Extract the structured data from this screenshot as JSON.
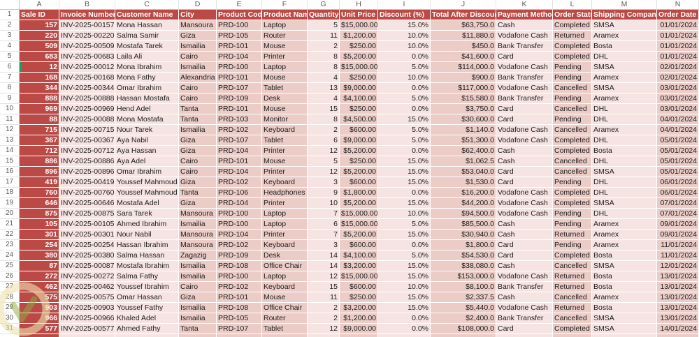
{
  "sheet": {
    "column_letters": [
      "A",
      "B",
      "C",
      "D",
      "E",
      "F",
      "G",
      "H",
      "I",
      "J",
      "K",
      "L",
      "M",
      "N"
    ],
    "header_row_number": "1",
    "headers": [
      "Sale ID",
      "Invoice Number",
      "Customer Name",
      "City",
      "Product Code",
      "Product Name",
      "Quantity",
      "Unit Price",
      "Discount (%)",
      "Total After Discount",
      "Payment Method",
      "Order Status",
      "Shipping Company",
      "Order Date"
    ],
    "row_numbers": [
      "2",
      "3",
      "4",
      "5",
      "6",
      "7",
      "8",
      "9",
      "10",
      "11",
      "12",
      "13",
      "14",
      "15",
      "16",
      "17",
      "18",
      "19",
      "20",
      "21",
      "22",
      "23",
      "24",
      "25",
      "26",
      "27",
      "28",
      "29",
      "30",
      "31"
    ],
    "rows": [
      [
        "157",
        "INV-2025-00157",
        "Mona Hassan",
        "Mansoura",
        "PRD-100",
        "Laptop",
        "5",
        "$15,000.00",
        "15.0%",
        "$63,750.0",
        "Cash",
        "Completed",
        "SMSA",
        "01/01/2024"
      ],
      [
        "220",
        "INV-2025-00220",
        "Salma Samir",
        "Giza",
        "PRD-105",
        "Router",
        "11",
        "$1,200.00",
        "10.0%",
        "$11,880.0",
        "Vodafone Cash",
        "Returned",
        "Aramex",
        "01/01/2024"
      ],
      [
        "509",
        "INV-2025-00509",
        "Mostafa Tarek",
        "Ismailia",
        "PRD-101",
        "Mouse",
        "2",
        "$250.00",
        "10.0%",
        "$450.0",
        "Bank Transfer",
        "Completed",
        "Bosta",
        "01/01/2024"
      ],
      [
        "683",
        "INV-2025-00683",
        "Laila Ali",
        "Cairo",
        "PRD-104",
        "Printer",
        "8",
        "$5,200.00",
        "0.0%",
        "$41,600.0",
        "Card",
        "Completed",
        "DHL",
        "01/01/2024"
      ],
      [
        "12",
        "INV-2025-00012",
        "Mona Ibrahim",
        "Ismailia",
        "PRD-100",
        "Laptop",
        "8",
        "$15,000.00",
        "5.0%",
        "$114,000.0",
        "Vodafone Cash",
        "Pending",
        "SMSA",
        "02/01/2024"
      ],
      [
        "168",
        "INV-2025-00168",
        "Mona Fathy",
        "Alexandria",
        "PRD-101",
        "Mouse",
        "4",
        "$250.00",
        "10.0%",
        "$900.0",
        "Bank Transfer",
        "Pending",
        "Aramex",
        "02/01/2024"
      ],
      [
        "344",
        "INV-2025-00344",
        "Omar Ibrahim",
        "Cairo",
        "PRD-107",
        "Tablet",
        "13",
        "$9,000.00",
        "0.0%",
        "$117,000.0",
        "Vodafone Cash",
        "Cancelled",
        "SMSA",
        "03/01/2024"
      ],
      [
        "888",
        "INV-2025-00888",
        "Hassan Mostafa",
        "Cairo",
        "PRD-109",
        "Desk",
        "4",
        "$4,100.00",
        "5.0%",
        "$15,580.0",
        "Bank Transfer",
        "Pending",
        "Aramex",
        "03/01/2024"
      ],
      [
        "969",
        "INV-2025-00969",
        "Hend Adel",
        "Tanta",
        "PRD-101",
        "Mouse",
        "15",
        "$250.00",
        "0.0%",
        "$3,750.0",
        "Card",
        "Cancelled",
        "DHL",
        "03/01/2024"
      ],
      [
        "88",
        "INV-2025-00088",
        "Mona Mostafa",
        "Tanta",
        "PRD-103",
        "Monitor",
        "8",
        "$4,500.00",
        "15.0%",
        "$30,600.0",
        "Card",
        "Pending",
        "DHL",
        "04/01/2024"
      ],
      [
        "715",
        "INV-2025-00715",
        "Nour Tarek",
        "Ismailia",
        "PRD-102",
        "Keyboard",
        "2",
        "$600.00",
        "5.0%",
        "$1,140.0",
        "Vodafone Cash",
        "Cancelled",
        "Aramex",
        "04/01/2024"
      ],
      [
        "367",
        "INV-2025-00367",
        "Aya Nabil",
        "Giza",
        "PRD-107",
        "Tablet",
        "6",
        "$9,000.00",
        "5.0%",
        "$51,300.0",
        "Vodafone Cash",
        "Completed",
        "DHL",
        "05/01/2024"
      ],
      [
        "712",
        "INV-2025-00712",
        "Aya Hassan",
        "Giza",
        "PRD-104",
        "Printer",
        "12",
        "$5,200.00",
        "0.0%",
        "$62,400.0",
        "Cash",
        "Completed",
        "Bosta",
        "05/01/2024"
      ],
      [
        "886",
        "INV-2025-00886",
        "Aya Adel",
        "Cairo",
        "PRD-101",
        "Mouse",
        "5",
        "$250.00",
        "15.0%",
        "$1,062.5",
        "Cash",
        "Cancelled",
        "DHL",
        "05/01/2024"
      ],
      [
        "896",
        "INV-2025-00896",
        "Omar Ibrahim",
        "Cairo",
        "PRD-104",
        "Printer",
        "12",
        "$5,200.00",
        "15.0%",
        "$53,040.0",
        "Card",
        "Cancelled",
        "SMSA",
        "05/01/2024"
      ],
      [
        "419",
        "INV-2025-00419",
        "Youssef Mahmoud",
        "Giza",
        "PRD-102",
        "Keyboard",
        "3",
        "$600.00",
        "15.0%",
        "$1,530.0",
        "Card",
        "Pending",
        "DHL",
        "06/01/2024"
      ],
      [
        "760",
        "INV-2025-00760",
        "Youssef Mahmoud",
        "Tanta",
        "PRD-106",
        "Headphones",
        "9",
        "$1,800.00",
        "0.0%",
        "$16,200.0",
        "Vodafone Cash",
        "Completed",
        "DHL",
        "06/01/2024"
      ],
      [
        "646",
        "INV-2025-00646",
        "Mostafa Adel",
        "Giza",
        "PRD-104",
        "Printer",
        "10",
        "$5,200.00",
        "15.0%",
        "$44,200.0",
        "Vodafone Cash",
        "Completed",
        "SMSA",
        "07/01/2024"
      ],
      [
        "875",
        "INV-2025-00875",
        "Sara Tarek",
        "Mansoura",
        "PRD-100",
        "Laptop",
        "7",
        "$15,000.00",
        "10.0%",
        "$94,500.0",
        "Vodafone Cash",
        "Pending",
        "DHL",
        "07/01/2024"
      ],
      [
        "105",
        "INV-2025-00105",
        "Ahmed Ibrahim",
        "Ismailia",
        "PRD-100",
        "Laptop",
        "6",
        "$15,000.00",
        "5.0%",
        "$85,500.0",
        "Cash",
        "Pending",
        "Aramex",
        "09/01/2024"
      ],
      [
        "301",
        "INV-2025-00301",
        "Nour Nabil",
        "Mansoura",
        "PRD-104",
        "Printer",
        "7",
        "$5,200.00",
        "15.0%",
        "$30,940.0",
        "Cash",
        "Returned",
        "Aramex",
        "09/01/2024"
      ],
      [
        "254",
        "INV-2025-00254",
        "Hassan Ibrahim",
        "Mansoura",
        "PRD-102",
        "Keyboard",
        "3",
        "$600.00",
        "0.0%",
        "$1,800.0",
        "Card",
        "Pending",
        "Aramex",
        "11/01/2024"
      ],
      [
        "380",
        "INV-2025-00380",
        "Salma Hassan",
        "Zagazig",
        "PRD-109",
        "Desk",
        "14",
        "$4,100.00",
        "5.0%",
        "$54,530.0",
        "Card",
        "Completed",
        "Bosta",
        "11/01/2024"
      ],
      [
        "87",
        "INV-2025-00087",
        "Mostafa Ibrahim",
        "Ismailia",
        "PRD-108",
        "Office Chair",
        "14",
        "$3,200.00",
        "15.0%",
        "$38,080.0",
        "Cash",
        "Cancelled",
        "SMSA",
        "12/01/2024"
      ],
      [
        "272",
        "INV-2025-00272",
        "Salma Fathy",
        "Ismailia",
        "PRD-100",
        "Laptop",
        "12",
        "$15,000.00",
        "15.0%",
        "$153,000.0",
        "Vodafone Cash",
        "Returned",
        "Bosta",
        "13/01/2024"
      ],
      [
        "462",
        "INV-2025-00462",
        "Youssef Ibrahim",
        "Cairo",
        "PRD-102",
        "Keyboard",
        "15",
        "$600.00",
        "10.0%",
        "$8,100.0",
        "Bank Transfer",
        "Returned",
        "Bosta",
        "13/01/2024"
      ],
      [
        "575",
        "INV-2025-00575",
        "Omar Hassan",
        "Giza",
        "PRD-101",
        "Mouse",
        "11",
        "$250.00",
        "15.0%",
        "$2,337.5",
        "Cash",
        "Cancelled",
        "Aramex",
        "13/01/2024"
      ],
      [
        "903",
        "INV-2025-00903",
        "Youssef Fathy",
        "Ismailia",
        "PRD-108",
        "Office Chair",
        "2",
        "$3,200.00",
        "15.0%",
        "$5,440.0",
        "Vodafone Cash",
        "Returned",
        "Bosta",
        "13/01/2024"
      ],
      [
        "966",
        "INV-2025-00966",
        "Khaled Adel",
        "Ismailia",
        "PRD-105",
        "Router",
        "2",
        "$1,200.00",
        "0.0%",
        "$2,400.0",
        "Bank Transfer",
        "Cancelled",
        "SMSA",
        "13/01/2024"
      ],
      [
        "577",
        "INV-2025-00577",
        "Ahmed Fathy",
        "Tanta",
        "PRD-107",
        "Tablet",
        "12",
        "$9,000.00",
        "0.0%",
        "$108,000.0",
        "Card",
        "Completed",
        "SMSA",
        "14/01/2024"
      ]
    ],
    "selected_cell": "A6",
    "colors": {
      "table_red": "#BB4A46",
      "row_light": "#F6E4E2",
      "row_medium": "#EBCCC7",
      "selection_green": "#14A05E",
      "gutter_text": "#5B5B5B",
      "watermark_ring": "#EDE3AE",
      "watermark_mark": "#8FAE3F"
    }
  }
}
